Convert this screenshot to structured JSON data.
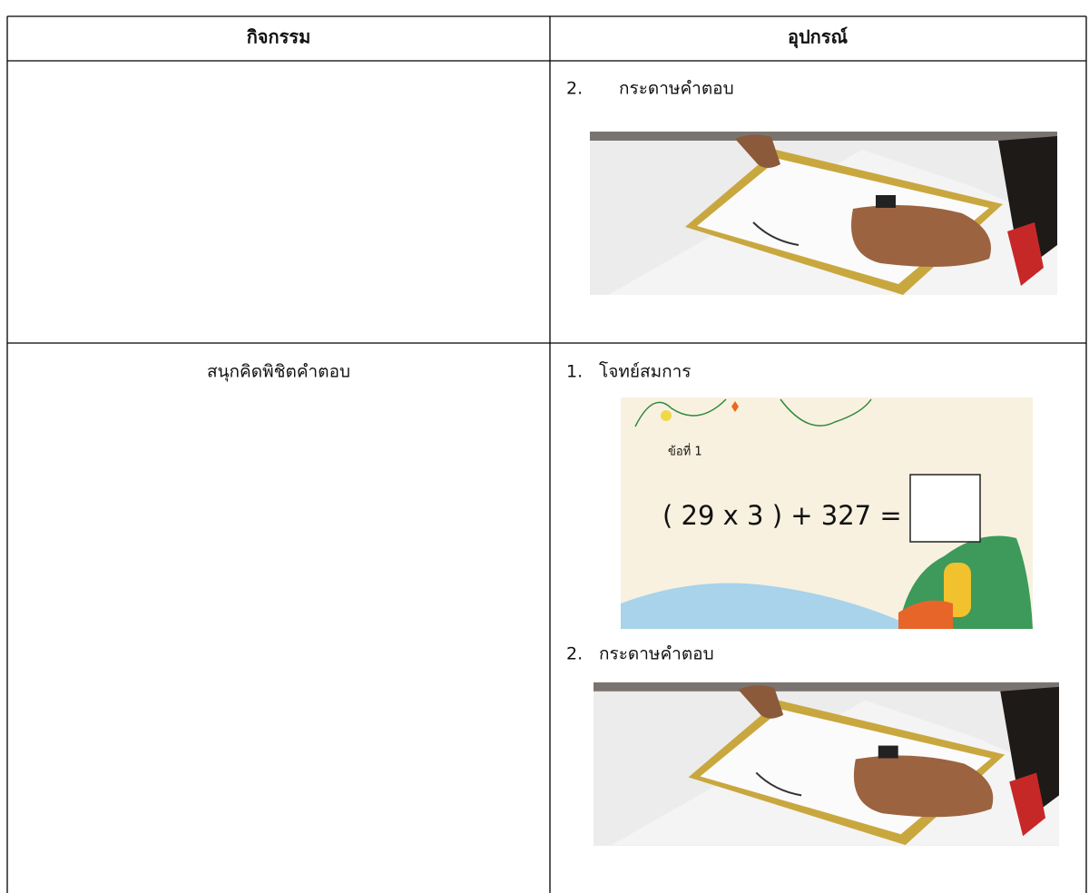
{
  "table": {
    "headers": [
      "กิจกรรม",
      "อุปกรณ์"
    ],
    "rows": [
      {
        "items": [
          {
            "number": "2.",
            "label": "กระดาษคำตอบ"
          }
        ]
      },
      {
        "activity": "สนุกคิดพิชิตคำตอบ",
        "items": [
          {
            "number": "1.",
            "label": "โจทย์สมการ",
            "image_text": [
              "ข้อที่ 1",
              "( 29 x 3 ) + 327 ="
            ]
          },
          {
            "number": "2.",
            "label": "กระดาษคำตอบ"
          }
        ]
      }
    ]
  }
}
